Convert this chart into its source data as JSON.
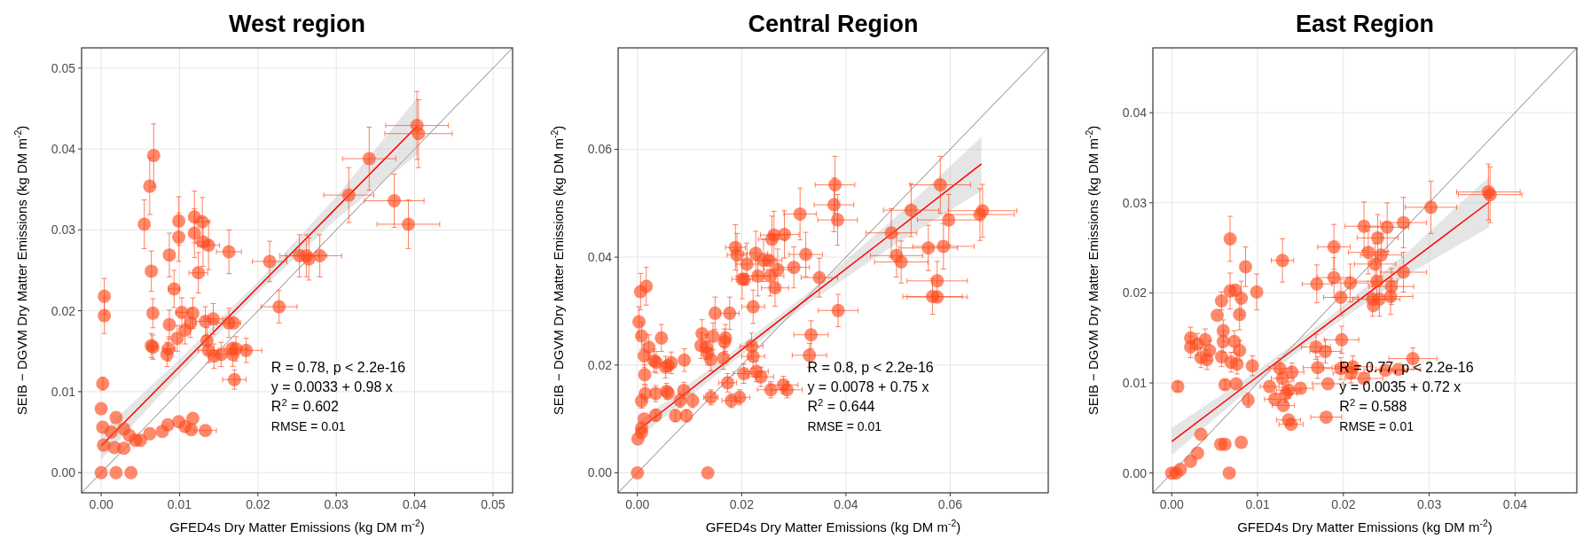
{
  "chart_data": [
    {
      "type": "scatter",
      "title": "West region",
      "xlabel": "GFED4s Dry Matter Emissions (kg  DM m$^{-2}$)",
      "ylabel": "SEIB − DGVM Dry Matter Emissions (kg  DM m$^{-2}$)",
      "xlim": [
        -0.0025,
        0.0525
      ],
      "ylim": [
        -0.0025,
        0.0525
      ],
      "xticks": [
        {
          "value": 0,
          "label": "0.00"
        },
        {
          "value": 0.01,
          "label": "0.01"
        },
        {
          "value": 0.02,
          "label": "0.02"
        },
        {
          "value": 0.03,
          "label": "0.03"
        },
        {
          "value": 0.04,
          "label": "0.04"
        },
        {
          "value": 0.05,
          "label": "0.05"
        }
      ],
      "yticks": [
        {
          "value": 0,
          "label": "0.00"
        },
        {
          "value": 0.01,
          "label": "0.01"
        },
        {
          "value": 0.02,
          "label": "0.02"
        },
        {
          "value": 0.03,
          "label": "0.03"
        },
        {
          "value": 0.04,
          "label": "0.04"
        },
        {
          "value": 0.05,
          "label": "0.05"
        }
      ],
      "grid": true,
      "annotations": [
        "R = 0.78, p < 2.2e-16",
        "y = 0.0033 + 0.98 x",
        "R$^{2}$ = 0.602",
        "RMSE = 0.01"
      ],
      "series": [
        {
          "type": "line",
          "color": "#4d4d4d",
          "x": [
            -0.0025,
            0.0525
          ],
          "values": [
            -0.0025,
            0.0525
          ]
        },
        {
          "type": "line",
          "color": "#ff0000",
          "x": [
            0,
            0.0101,
            0.0202,
            0.0302,
            0.0403
          ],
          "values": [
            0.0033,
            0.0132,
            0.0231,
            0.0329,
            0.0428
          ],
          "lower": [
            0.0016,
            0.0123,
            0.0224,
            0.0315,
            0.0393
          ],
          "upper": [
            0.005,
            0.0141,
            0.0238,
            0.0343,
            0.0463
          ]
        },
        {
          "type": "scatter",
          "color": "#ff4a1c",
          "x": [
            0,
            0.0019,
            0.0038,
            0.0004,
            0.0004,
            0.0002,
            0,
            0.0002,
            0.0019,
            0.0013,
            0.0003,
            0.0017,
            0.0029,
            0.0029,
            0.0036,
            0.0044,
            0.005,
            0.0062,
            0.0078,
            0.0085,
            0.0099,
            0.0107,
            0.0115,
            0.0117,
            0.0133,
            0.0067,
            0.0062,
            0.0055,
            0.0064,
            0.0066,
            0.0064,
            0.0066,
            0.0087,
            0.0093,
            0.0087,
            0.0086,
            0.0084,
            0.0097,
            0.0099,
            0.0099,
            0.0103,
            0.0107,
            0.0119,
            0.0119,
            0.0129,
            0.013,
            0.0137,
            0.0124,
            0.0117,
            0.0114,
            0.0133,
            0.0143,
            0.0135,
            0.0137,
            0.0144,
            0.0153,
            0.0163,
            0.0169,
            0.0167,
            0.0172,
            0.0168,
            0.0185,
            0.017,
            0.0163,
            0.0215,
            0.0227,
            0.0253,
            0.0262,
            0.0265,
            0.0279,
            0.0316,
            0.0342,
            0.0374,
            0.0392,
            0.0403,
            0.0405
          ],
          "values": [
            0,
            0,
            0,
            0.0218,
            0.0194,
            0.011,
            0.0079,
            0.0056,
            0.0068,
            0.005,
            0.0034,
            0.0031,
            0.003,
            0.0054,
            0.0046,
            0.004,
            0.004,
            0.0048,
            0.0051,
            0.0059,
            0.0063,
            0.0057,
            0.0053,
            0.0067,
            0.0052,
            0.0392,
            0.0354,
            0.0307,
            0.0249,
            0.0197,
            0.0157,
            0.0155,
            0.0269,
            0.0227,
            0.0183,
            0.0153,
            0.0146,
            0.0166,
            0.0311,
            0.0291,
            0.0198,
            0.0176,
            0.0316,
            0.0296,
            0.031,
            0.0285,
            0.0281,
            0.0247,
            0.0197,
            0.0185,
            0.0187,
            0.019,
            0.0163,
            0.0151,
            0.0144,
            0.0146,
            0.0185,
            0.0185,
            0.0153,
            0.0153,
            0.0146,
            0.0151,
            0.0115,
            0.0273,
            0.0261,
            0.0205,
            0.0268,
            0.0268,
            0.0264,
            0.0268,
            0.0343,
            0.0388,
            0.0336,
            0.0307,
            0.0429,
            0.0419
          ],
          "errors": [
            null,
            null,
            null,
            0.0022,
            0.0022,
            0.0008,
            null,
            null,
            null,
            null,
            null,
            null,
            null,
            null,
            null,
            null,
            null,
            null,
            null,
            null,
            null,
            null,
            null,
            null,
            null,
            0.0039,
            0.0035,
            0.003,
            0.0025,
            0.0018,
            0.0015,
            0.0015,
            0.0027,
            0.0023,
            0.0018,
            0.0015,
            0.0015,
            0.0016,
            0.003,
            0.003,
            0.0018,
            0.0017,
            0.0032,
            0.003,
            0.003,
            0.003,
            0.003,
            0.0025,
            0.0019,
            0.0018,
            0.0018,
            0.0019,
            0.0016,
            0.0015,
            0.0015,
            0.0015,
            0.0018,
            null,
            null,
            0.0015,
            0.0015,
            0.0015,
            0.0012,
            0.0027,
            0.0025,
            0.002,
            0.0026,
            0.0026,
            0.0026,
            0.0026,
            0.0034,
            0.0039,
            0.0033,
            0.003,
            0.0042,
            0.0042
          ],
          "xerrors": [
            null,
            null,
            null,
            null,
            null,
            null,
            null,
            null,
            null,
            null,
            null,
            null,
            null,
            null,
            null,
            null,
            null,
            null,
            null,
            null,
            null,
            null,
            null,
            null,
            0.0014,
            null,
            null,
            null,
            null,
            null,
            null,
            0.0006,
            null,
            0.0007,
            null,
            0.0008,
            null,
            null,
            null,
            null,
            0.0008,
            null,
            null,
            null,
            0.0009,
            0.0009,
            0.0014,
            0.0012,
            null,
            null,
            0.0012,
            0.0012,
            null,
            0.0013,
            null,
            0.0013,
            0.0015,
            null,
            null,
            0.0015,
            null,
            0.002,
            0.0015,
            0.0016,
            0.0022,
            0.0023,
            0.0025,
            0.0026,
            null,
            0.0028,
            0.0032,
            0.0034,
            0.0038,
            0.004,
            0.004,
            0.0043
          ]
        }
      ]
    },
    {
      "type": "scatter",
      "title": "Central Region",
      "xlabel": "GFED4s Dry Matter Emissions (kg  DM m$^{-2}$)",
      "ylabel": "SEIB − DGVM Dry Matter Emissions (kg  DM m$^{-2}$)",
      "xlim": [
        -0.0037,
        0.0788
      ],
      "ylim": [
        -0.0037,
        0.0788
      ],
      "xticks": [
        {
          "value": 0,
          "label": "0.00"
        },
        {
          "value": 0.02,
          "label": "0.02"
        },
        {
          "value": 0.04,
          "label": "0.04"
        },
        {
          "value": 0.06,
          "label": "0.06"
        }
      ],
      "yticks": [
        {
          "value": 0,
          "label": "0.00"
        },
        {
          "value": 0.02,
          "label": "0.02"
        },
        {
          "value": 0.04,
          "label": "0.04"
        },
        {
          "value": 0.06,
          "label": "0.06"
        }
      ],
      "grid": true,
      "annotations": [
        "R = 0.8, p < 2.2e-16",
        "y = 0.0078 + 0.75 x",
        "R$^{2}$ = 0.644",
        "RMSE = 0.01"
      ],
      "series": [
        {
          "type": "line",
          "color": "#4d4d4d",
          "x": [
            -0.0037,
            0.0788
          ],
          "values": [
            -0.0037,
            0.0788
          ]
        },
        {
          "type": "line",
          "color": "#ff0000",
          "x": [
            0,
            0.0165,
            0.033,
            0.0495,
            0.066
          ],
          "values": [
            0.0078,
            0.0202,
            0.0326,
            0.0449,
            0.0573
          ],
          "lower": [
            0.0063,
            0.0192,
            0.0316,
            0.0424,
            0.0523
          ],
          "upper": [
            0.0093,
            0.0212,
            0.0336,
            0.0474,
            0.0623
          ]
        },
        {
          "type": "scatter",
          "color": "#ff4a1c",
          "x": [
            0,
            0.0135,
            0.0001,
            0.0008,
            0.0008,
            0.0013,
            0.0003,
            0.0006,
            0.0017,
            0.0008,
            0.0022,
            0.0013,
            0.0014,
            0.0015,
            0.0008,
            0.0046,
            0.0032,
            0.0036,
            0.0054,
            0.0059,
            0.0065,
            0.0056,
            0.0059,
            0.0035,
            0.0035,
            0.0073,
            0.0094,
            0.0082,
            0.0089,
            0.009,
            0.0106,
            0.0124,
            0.0122,
            0.0132,
            0.0135,
            0.0141,
            0.0145,
            0.0149,
            0.0169,
            0.0167,
            0.0165,
            0.0141,
            0.0173,
            0.0177,
            0.018,
            0.0196,
            0.0204,
            0.0219,
            0.0222,
            0.0228,
            0.0237,
            0.0256,
            0.028,
            0.0287,
            0.0222,
            0.0188,
            0.0191,
            0.0201,
            0.0205,
            0.021,
            0.0227,
            0.0231,
            0.0242,
            0.0252,
            0.0255,
            0.0258,
            0.0262,
            0.0264,
            0.0269,
            0.0282,
            0.03,
            0.0312,
            0.0323,
            0.0349,
            0.0333,
            0.033,
            0.0379,
            0.0377,
            0.0384,
            0.0385,
            0.0487,
            0.0497,
            0.0506,
            0.0525,
            0.0558,
            0.0587,
            0.0581,
            0.0597,
            0.0575,
            0.0566,
            0.0575,
            0.0657,
            0.0662
          ],
          "values": [
            0,
            0,
            0.0063,
            0.0075,
            0.0083,
            0.01,
            0.028,
            0.0336,
            0.0346,
            0.0254,
            0.0233,
            0.0217,
            0.0182,
            0.0147,
            0.0133,
            0.025,
            0.0208,
            0.0205,
            0.0196,
            0.0199,
            0.0204,
            0.0151,
            0.0148,
            0.0147,
            0.0107,
            0.0106,
            0.0106,
            0.0134,
            0.0153,
            0.0209,
            0.0134,
            0.0258,
            0.0236,
            0.0233,
            0.0222,
            0.021,
            0.0253,
            0.0296,
            0.025,
            0.0243,
            0.0213,
            0.014,
            0.0167,
            0.0296,
            0.0134,
            0.014,
            0.0184,
            0.0235,
            0.0216,
            0.0188,
            0.0178,
            0.0154,
            0.0163,
            0.0154,
            0.0308,
            0.0418,
            0.0404,
            0.0359,
            0.0359,
            0.0387,
            0.0407,
            0.0365,
            0.0394,
            0.0394,
            0.0365,
            0.0433,
            0.0441,
            0.0343,
            0.0377,
            0.0442,
            0.0381,
            0.048,
            0.0405,
            0.0362,
            0.0256,
            0.0218,
            0.0534,
            0.0497,
            0.0469,
            0.0301,
            0.0445,
            0.0403,
            0.0391,
            0.0487,
            0.0417,
            0.042,
            0.0534,
            0.0469,
            0.0356,
            0.0327,
            0.0326,
            0.0479,
            0.0486
          ],
          "errors": [
            null,
            null,
            null,
            null,
            null,
            null,
            0.0028,
            0.0034,
            0.0035,
            0.0025,
            0.0023,
            0.0022,
            0.0018,
            0.0015,
            0.0013,
            0.0025,
            0.0021,
            0.002,
            0.002,
            null,
            0.002,
            0.0015,
            null,
            0.0015,
            0.0011,
            0.0011,
            0.0011,
            0.0013,
            0.0015,
            0.0021,
            0.0013,
            0.0026,
            0.0024,
            0.0023,
            0.0022,
            0.0021,
            0.0025,
            0.003,
            0.0025,
            0.0024,
            0.0021,
            0.0014,
            0.0017,
            0.003,
            0.0013,
            0.0014,
            0.0018,
            0.0024,
            0.0022,
            0.0019,
            0.0018,
            0.0015,
            0.0016,
            0.0015,
            0.0031,
            0.0042,
            0.004,
            0.0036,
            null,
            0.0039,
            0.0041,
            0.0037,
            0.0039,
            null,
            0.0037,
            0.0043,
            0.0044,
            0.0034,
            0.0038,
            0.0044,
            0.0038,
            0.0048,
            0.0041,
            0.0036,
            0.0026,
            0.0022,
            0.0053,
            0.005,
            0.0047,
            0.003,
            0.0045,
            0.004,
            0.0039,
            0.0049,
            0.0042,
            0.0042,
            0.0053,
            0.0047,
            0.0036,
            0.0033,
            null,
            0.0048,
            0.0049
          ],
          "xerrors": [
            null,
            null,
            null,
            null,
            null,
            null,
            null,
            null,
            null,
            null,
            null,
            null,
            null,
            null,
            null,
            null,
            null,
            null,
            null,
            null,
            null,
            null,
            null,
            null,
            null,
            null,
            null,
            null,
            null,
            null,
            null,
            null,
            null,
            null,
            null,
            null,
            null,
            null,
            null,
            null,
            null,
            0.0014,
            0.0017,
            0.0018,
            0.0018,
            0.002,
            0.002,
            0.0022,
            0.0022,
            0.0023,
            0.0024,
            0.0026,
            0.0028,
            0.0029,
            0.0022,
            0.0019,
            0.0019,
            0.002,
            null,
            0.0021,
            0.0023,
            0.0023,
            0.0024,
            0.0025,
            0.0026,
            0.0026,
            0.0026,
            0.0026,
            0.0027,
            0.0028,
            0.003,
            0.0031,
            0.0032,
            0.0035,
            0.0033,
            0.0033,
            0.0038,
            0.0038,
            0.0038,
            0.0038,
            0.0049,
            0.005,
            0.0051,
            0.0053,
            0.0056,
            0.0059,
            0.0058,
            0.006,
            0.0058,
            0.0057,
            0.0058,
            0.0066,
            0.0066
          ]
        }
      ]
    },
    {
      "type": "scatter",
      "title": "East Region",
      "xlabel": "GFED4s Dry Matter Emissions (kg DM m$^{-2}$)",
      "ylabel": "SEIB − DGVM Dry Matter Emissions (kg DM m$^{-2}$)",
      "xlim": [
        -0.0022,
        0.0472
      ],
      "ylim": [
        -0.0022,
        0.0472
      ],
      "xticks": [
        {
          "value": 0,
          "label": "0.00"
        },
        {
          "value": 0.01,
          "label": "0.01"
        },
        {
          "value": 0.02,
          "label": "0.02"
        },
        {
          "value": 0.03,
          "label": "0.03"
        },
        {
          "value": 0.04,
          "label": "0.04"
        }
      ],
      "yticks": [
        {
          "value": 0,
          "label": "0.00"
        },
        {
          "value": 0.01,
          "label": "0.01"
        },
        {
          "value": 0.02,
          "label": "0.02"
        },
        {
          "value": 0.03,
          "label": "0.03"
        },
        {
          "value": 0.04,
          "label": "0.04"
        }
      ],
      "grid": true,
      "annotations": [
        "R = 0.77, p < 2.2e-16",
        "y = 0.0035 + 0.72 x",
        "R$^{2}$ = 0.588",
        "RMSE = 0.01"
      ],
      "series": [
        {
          "type": "line",
          "color": "#4d4d4d",
          "x": [
            -0.0022,
            0.0472
          ],
          "values": [
            -0.0022,
            0.0472
          ]
        },
        {
          "type": "line",
          "color": "#ff0000",
          "x": [
            0,
            0.0093,
            0.0185,
            0.0278,
            0.037
          ],
          "values": [
            0.0035,
            0.0102,
            0.0168,
            0.0235,
            0.0301
          ],
          "lower": [
            0.002,
            0.0095,
            0.0162,
            0.0222,
            0.0273
          ],
          "upper": [
            0.005,
            0.0109,
            0.0174,
            0.0248,
            0.0329
          ]
        },
        {
          "type": "scatter",
          "color": "#ff4a1c",
          "x": [
            0,
            0.0005,
            0.001,
            0.0067,
            0.0022,
            0.003,
            0.0034,
            0.0057,
            0.0062,
            0.0081,
            0.0007,
            0.0022,
            0.0022,
            0.003,
            0.0034,
            0.0039,
            0.0044,
            0.0041,
            0.0053,
            0.0058,
            0.006,
            0.006,
            0.0058,
            0.0062,
            0.0068,
            0.0068,
            0.0074,
            0.0081,
            0.0079,
            0.0073,
            0.0079,
            0.0069,
            0.0076,
            0.0094,
            0.0075,
            0.0086,
            0.0099,
            0.0089,
            0.0114,
            0.012,
            0.0126,
            0.0129,
            0.013,
            0.0133,
            0.0136,
            0.014,
            0.0136,
            0.0139,
            0.015,
            0.0129,
            0.0168,
            0.0169,
            0.017,
            0.0179,
            0.0182,
            0.018,
            0.0189,
            0.0189,
            0.0198,
            0.0197,
            0.0197,
            0.0208,
            0.0211,
            0.0209,
            0.0224,
            0.0224,
            0.0229,
            0.024,
            0.0237,
            0.0244,
            0.0251,
            0.0239,
            0.0234,
            0.0242,
            0.0235,
            0.0256,
            0.0255,
            0.027,
            0.027,
            0.0249,
            0.0264,
            0.0281,
            0.0302,
            0.0369,
            0.0371
          ],
          "values": [
            0,
            0,
            0.0004,
            0,
            0.0013,
            0.0022,
            0.0043,
            0.0032,
            0.0032,
            0.0034,
            0.0096,
            0.015,
            0.014,
            0.0143,
            0.0128,
            0.0148,
            0.0136,
            0.0126,
            0.0175,
            0.0191,
            0.0158,
            0.0146,
            0.0129,
            0.0098,
            0.026,
            0.0202,
            0.0203,
            0.0194,
            0.0176,
            0.0146,
            0.0136,
            0.0123,
            0.0121,
            0.0119,
            0.0099,
            0.0229,
            0.0201,
            0.0081,
            0.0096,
            0.0082,
            0.0116,
            0.0105,
            0.0075,
            0.0088,
            0.0092,
            0.0112,
            0.0059,
            0.0054,
            0.0094,
            0.0236,
            0.014,
            0.021,
            0.0117,
            0.0135,
            0.0099,
            0.0062,
            0.0251,
            0.0217,
            0.0148,
            0.0116,
            0.0195,
            0.0211,
            0.0118,
            0.0111,
            0.0105,
            0.0274,
            0.0245,
            0.0261,
            0.0232,
            0.0242,
            0.0273,
            0.0213,
            0.0193,
            0.0193,
            0.0186,
            0.0207,
            0.0196,
            0.0223,
            0.0278,
            0.0114,
            0.0115,
            0.0127,
            0.0295,
            0.0312,
            0.0309
          ],
          "errors": [
            null,
            null,
            null,
            null,
            null,
            null,
            null,
            null,
            null,
            null,
            0.0005,
            0.0012,
            0.0012,
            0.0012,
            0.0011,
            0.0012,
            0.0011,
            0.0011,
            null,
            0.001,
            0.0012,
            0.0012,
            0.0011,
            0.0005,
            0.0025,
            0.002,
            null,
            0.0019,
            0.0017,
            0.0012,
            0.0011,
            0.0011,
            0.0011,
            0.0011,
            null,
            0.0022,
            0.002,
            0.0008,
            null,
            null,
            0.0011,
            0.001,
            null,
            0.0009,
            0.0009,
            0.001,
            null,
            null,
            null,
            0.0024,
            0.0014,
            0.0021,
            0.0012,
            0.0013,
            null,
            null,
            0.0025,
            0.0022,
            0.0015,
            0.0012,
            0.002,
            0.0021,
            0.0012,
            0.0011,
            null,
            0.0027,
            0.0024,
            0.0026,
            0.0023,
            0.0024,
            0.0027,
            0.0021,
            0.0019,
            0.0019,
            null,
            0.002,
            0.002,
            0.0022,
            0.0028,
            null,
            null,
            0.0012,
            0.0029,
            0.0031,
            0.0031
          ],
          "xerrors": [
            null,
            null,
            null,
            null,
            null,
            null,
            null,
            null,
            null,
            null,
            null,
            null,
            null,
            null,
            null,
            null,
            null,
            null,
            null,
            null,
            null,
            null,
            null,
            null,
            null,
            null,
            null,
            null,
            null,
            null,
            null,
            null,
            null,
            null,
            null,
            null,
            null,
            null,
            0.0011,
            0.0012,
            0.0013,
            0.0013,
            0.0013,
            0.0013,
            0.0014,
            0.0014,
            0.0014,
            0.0014,
            0.0015,
            0.0013,
            0.0017,
            0.0017,
            0.0017,
            0.0018,
            0.0018,
            0.0018,
            0.0019,
            0.0019,
            0.002,
            0.002,
            0.002,
            0.0021,
            0.0021,
            0.0021,
            0.0022,
            0.0022,
            0.0023,
            0.0024,
            0.0024,
            0.0024,
            0.0025,
            0.0024,
            0.0023,
            0.0024,
            null,
            0.0026,
            0.0026,
            0.0027,
            0.0027,
            0.0025,
            0.0026,
            0.0028,
            0.003,
            0.0037,
            0.0037
          ]
        }
      ]
    }
  ]
}
